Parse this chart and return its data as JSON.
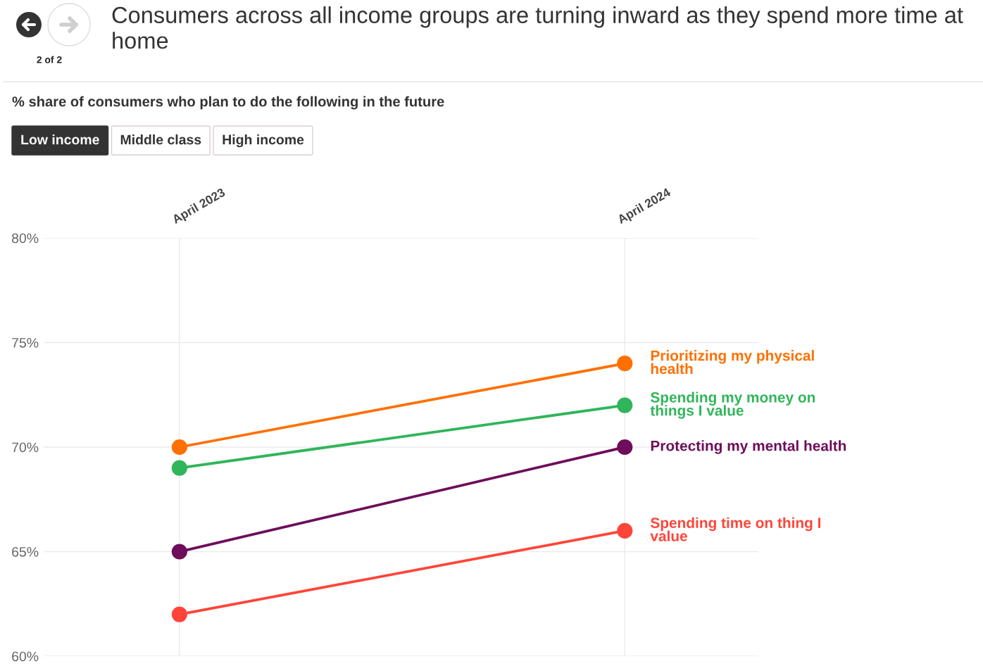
{
  "chart_data": {
    "type": "line",
    "title": "Consumers across all income groups are turning inward as they spend more time at home",
    "subtitle": "% share of consumers who plan to do the following in the future",
    "categories": [
      "April 2023",
      "April 2024"
    ],
    "series": [
      {
        "name": "Prioritizing my physical health",
        "color": "#ff7000",
        "values": [
          70,
          74
        ]
      },
      {
        "name": "Spending my money on things I value",
        "color": "#30b55a",
        "values": [
          69,
          72
        ]
      },
      {
        "name": "Protecting my mental health",
        "color": "#6e0d5b",
        "values": [
          65,
          70
        ]
      },
      {
        "name": "Spending time on thing I value",
        "color": "#ff4539",
        "values": [
          62,
          66
        ]
      }
    ],
    "ylim": [
      60,
      80
    ],
    "yticks": [
      {
        "value": 60,
        "label": "60%"
      },
      {
        "value": 65,
        "label": "65%"
      },
      {
        "value": 70,
        "label": "70%"
      },
      {
        "value": 75,
        "label": "75%"
      },
      {
        "value": 80,
        "label": "80%"
      }
    ],
    "grid": true,
    "marker": "circle",
    "line_style": "solid",
    "annotations": [
      "2 of 2",
      "Low income",
      "Middle class",
      "High income"
    ]
  }
}
